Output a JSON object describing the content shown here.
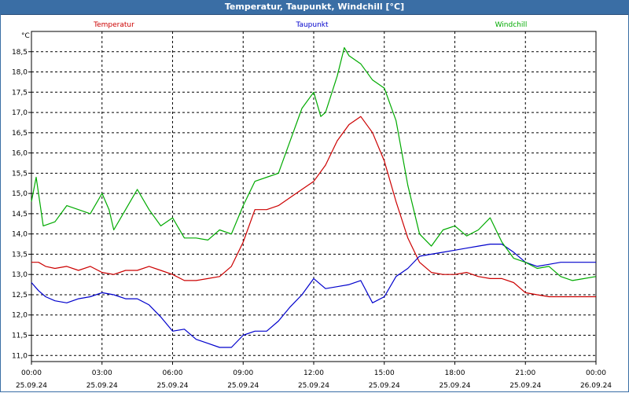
{
  "window": {
    "title": "Temperatur, Taupunkt, Windchill [°C]"
  },
  "chart_data": {
    "type": "line",
    "ylabel": "°C",
    "ylim": [
      10.85,
      19.0
    ],
    "xlim": [
      0,
      24
    ],
    "grid": true,
    "legend": "top",
    "y_ticks": [
      "11,0",
      "11,5",
      "12,0",
      "12,5",
      "13,0",
      "13,5",
      "14,0",
      "14,5",
      "15,0",
      "15,5",
      "16,0",
      "16,5",
      "17,0",
      "17,5",
      "18,0",
      "18,5"
    ],
    "y_tick_values": [
      11.0,
      11.5,
      12.0,
      12.5,
      13.0,
      13.5,
      14.0,
      14.5,
      15.0,
      15.5,
      16.0,
      16.5,
      17.0,
      17.5,
      18.0,
      18.5
    ],
    "x_ticks": [
      {
        "hour": 0,
        "time": "00:00",
        "date": "25.09.24"
      },
      {
        "hour": 3,
        "time": "03:00",
        "date": "25.09.24"
      },
      {
        "hour": 6,
        "time": "06:00",
        "date": "25.09.24"
      },
      {
        "hour": 9,
        "time": "09:00",
        "date": "25.09.24"
      },
      {
        "hour": 12,
        "time": "12:00",
        "date": "25.09.24"
      },
      {
        "hour": 15,
        "time": "15:00",
        "date": "25.09.24"
      },
      {
        "hour": 18,
        "time": "18:00",
        "date": "25.09.24"
      },
      {
        "hour": 21,
        "time": "21:00",
        "date": "25.09.24"
      },
      {
        "hour": 24,
        "time": "00:00",
        "date": "26.09.24"
      }
    ],
    "series": [
      {
        "name": "Temperatur",
        "color": "#cc0000",
        "x": [
          0,
          0.3,
          0.6,
          1,
          1.5,
          2,
          2.5,
          3,
          3.5,
          4,
          4.5,
          5,
          5.5,
          6,
          6.5,
          7,
          7.5,
          8,
          8.5,
          9,
          9.5,
          10,
          10.5,
          11,
          11.5,
          12,
          12.5,
          13,
          13.5,
          14,
          14.5,
          15,
          15.5,
          16,
          16.5,
          17,
          17.5,
          18,
          18.5,
          19,
          19.5,
          20,
          20.5,
          21,
          21.5,
          22,
          22.5,
          23,
          23.5,
          24
        ],
        "values": [
          13.3,
          13.3,
          13.2,
          13.15,
          13.2,
          13.1,
          13.2,
          13.05,
          13.0,
          13.1,
          13.1,
          13.2,
          13.1,
          13.0,
          12.85,
          12.85,
          12.9,
          12.95,
          13.2,
          13.8,
          14.6,
          14.6,
          14.7,
          14.9,
          15.1,
          15.3,
          15.7,
          16.3,
          16.7,
          16.9,
          16.5,
          15.8,
          14.8,
          13.9,
          13.3,
          13.05,
          13.0,
          13.0,
          13.05,
          12.95,
          12.9,
          12.9,
          12.8,
          12.55,
          12.5,
          12.45,
          12.45,
          12.45,
          12.45,
          12.45
        ]
      },
      {
        "name": "Taupunkt",
        "color": "#0000cc",
        "x": [
          0,
          0.3,
          0.6,
          1,
          1.5,
          2,
          2.5,
          3,
          3.5,
          4,
          4.5,
          5,
          5.5,
          6,
          6.5,
          7,
          7.5,
          8,
          8.5,
          9,
          9.5,
          10,
          10.5,
          11,
          11.5,
          12,
          12.5,
          13,
          13.5,
          14,
          14.5,
          15,
          15.5,
          16,
          16.5,
          17,
          17.5,
          18,
          18.5,
          19,
          19.5,
          20,
          20.5,
          21,
          21.5,
          22,
          22.5,
          23,
          23.5,
          24
        ],
        "values": [
          12.8,
          12.6,
          12.45,
          12.35,
          12.3,
          12.4,
          12.45,
          12.55,
          12.5,
          12.4,
          12.4,
          12.25,
          11.95,
          11.6,
          11.65,
          11.4,
          11.3,
          11.2,
          11.2,
          11.5,
          11.6,
          11.6,
          11.85,
          12.2,
          12.5,
          12.9,
          12.65,
          12.7,
          12.75,
          12.85,
          12.3,
          12.45,
          12.95,
          13.15,
          13.45,
          13.5,
          13.55,
          13.6,
          13.65,
          13.7,
          13.75,
          13.75,
          13.55,
          13.3,
          13.2,
          13.25,
          13.3,
          13.3,
          13.3,
          13.3
        ]
      },
      {
        "name": "Windchill",
        "color": "#00aa00",
        "x": [
          0,
          0.2,
          0.5,
          1,
          1.5,
          2,
          2.5,
          3,
          3.3,
          3.5,
          4,
          4.5,
          5,
          5.5,
          6,
          6.5,
          7,
          7.5,
          8,
          8.5,
          9,
          9.5,
          10,
          10.5,
          11,
          11.5,
          12,
          12.3,
          12.5,
          13,
          13.3,
          13.5,
          14,
          14.5,
          15,
          15.5,
          16,
          16.5,
          17,
          17.5,
          18,
          18.5,
          19,
          19.5,
          20,
          20.5,
          21,
          21.5,
          22,
          22.5,
          23,
          23.5,
          24
        ],
        "values": [
          14.8,
          15.4,
          14.2,
          14.3,
          14.7,
          14.6,
          14.5,
          15.0,
          14.6,
          14.1,
          14.6,
          15.1,
          14.6,
          14.2,
          14.4,
          13.9,
          13.9,
          13.85,
          14.1,
          14.0,
          14.7,
          15.3,
          15.4,
          15.5,
          16.3,
          17.1,
          17.5,
          16.9,
          17.0,
          17.9,
          18.6,
          18.4,
          18.2,
          17.8,
          17.6,
          16.8,
          15.2,
          14.0,
          13.7,
          14.1,
          14.2,
          13.95,
          14.1,
          14.4,
          13.8,
          13.4,
          13.3,
          13.15,
          13.2,
          12.95,
          12.85,
          12.9,
          12.95
        ]
      }
    ]
  }
}
